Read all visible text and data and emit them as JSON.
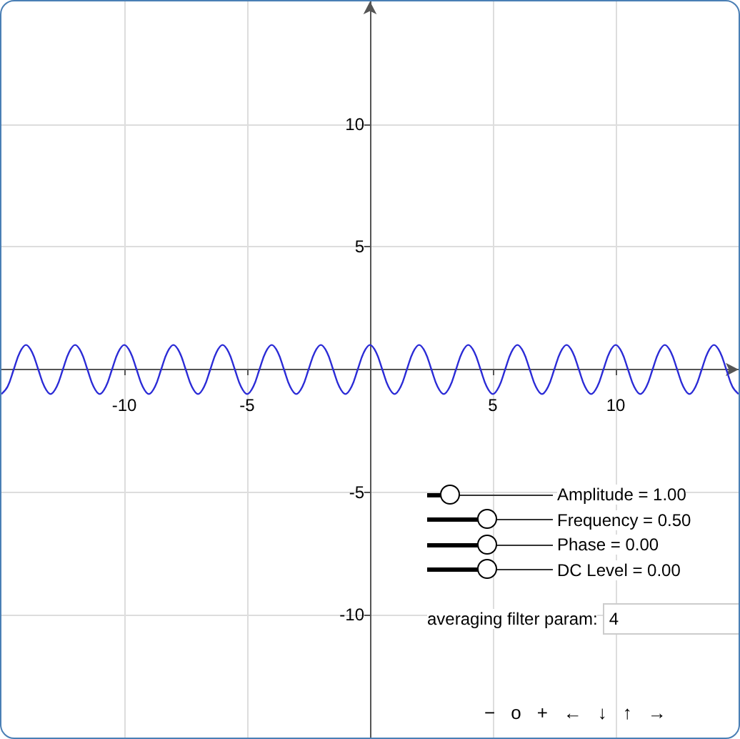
{
  "chart_data": {
    "type": "line",
    "x": [
      -15,
      -14.75,
      -14.5,
      -14.25,
      -14,
      -13.75,
      -13.5,
      -13.25,
      -13,
      -12.75,
      -12.5,
      -12.25,
      -12,
      -11.75,
      -11.5,
      -11.25,
      -11,
      -10.75,
      -10.5,
      -10.25,
      -10,
      -9.75,
      -9.5,
      -9.25,
      -9,
      -8.75,
      -8.5,
      -8.25,
      -8,
      -7.75,
      -7.5,
      -7.25,
      -7,
      -6.75,
      -6.5,
      -6.25,
      -6,
      -5.75,
      -5.5,
      -5.25,
      -5,
      -4.75,
      -4.5,
      -4.25,
      -4,
      -3.75,
      -3.5,
      -3.25,
      -3,
      -2.75,
      -2.5,
      -2.25,
      -2,
      -1.75,
      -1.5,
      -1.25,
      -1,
      -0.75,
      -0.5,
      -0.25,
      0,
      0.25,
      0.5,
      0.75,
      1,
      1.25,
      1.5,
      1.75,
      2,
      2.25,
      2.5,
      2.75,
      3,
      3.25,
      3.5,
      3.75,
      4,
      4.25,
      4.5,
      4.75,
      5,
      5.25,
      5.5,
      5.75,
      6,
      6.25,
      6.5,
      6.75,
      7,
      7.25,
      7.5,
      7.75,
      8,
      8.25,
      8.5,
      8.75,
      9,
      9.25,
      9.5,
      9.75,
      10,
      10.25,
      10.5,
      10.75,
      11,
      11.25,
      11.5,
      11.75,
      12,
      12.25,
      12.5,
      12.75,
      13,
      13.25,
      13.5,
      13.75,
      14,
      14.25,
      14.5,
      14.75,
      15
    ],
    "series": [
      {
        "color": "#2b2bd6",
        "values": [
          -1,
          -0.7,
          0,
          0.7,
          1,
          0.7,
          0,
          -0.7,
          -1,
          -0.7,
          0,
          0.7,
          1,
          0.7,
          0,
          -0.7,
          -1,
          -0.7,
          0,
          0.7,
          1,
          0.7,
          0,
          -0.7,
          -1,
          -0.7,
          0,
          0.7,
          1,
          0.7,
          0,
          -0.7,
          -1,
          -0.7,
          0,
          0.7,
          1,
          0.7,
          0,
          -0.7,
          -1,
          -0.7,
          0,
          0.7,
          1,
          0.7,
          0,
          -0.7,
          -1,
          -0.7,
          0,
          0.7,
          1,
          0.7,
          0,
          -0.7,
          -1,
          -0.7,
          0,
          0.7,
          1,
          0.7,
          0,
          -0.7,
          -1,
          -0.7,
          0,
          0.7,
          1,
          0.7,
          0,
          -0.7,
          -1,
          -0.7,
          0,
          0.7,
          1,
          0.7,
          0,
          -0.7,
          -1,
          -0.7,
          0,
          0.7,
          1,
          0.7,
          0,
          -0.7,
          -1,
          -0.7,
          0,
          0.7,
          1,
          0.7,
          0,
          -0.7,
          -1,
          -0.7,
          0,
          0.7,
          1,
          0.7,
          0,
          -0.7,
          -1,
          -0.7,
          0,
          0.7,
          1,
          0.7,
          0,
          -0.7,
          -1,
          -0.7,
          0,
          0.7,
          1,
          0.7,
          0,
          -0.7,
          -1
        ]
      }
    ],
    "xlim": [
      -15,
      15
    ],
    "ylim": [
      -15,
      15
    ],
    "xticks": [
      -10,
      -5,
      {
        "value": 0,
        "label": null
      },
      5,
      10
    ],
    "yticks": [
      -10,
      -5,
      {
        "value": 0,
        "label": null
      },
      5,
      10
    ],
    "grid": true,
    "marker": "none",
    "line_style": "solid",
    "annotations": [
      "Amplitude = 1.00",
      "Frequency = 0.50",
      "Phase = 0.00",
      "DC Level = 0.00",
      "averaging filter param:",
      "4",
      "−",
      "o",
      "+",
      "←",
      "↓",
      "↑",
      "→"
    ]
  }
}
